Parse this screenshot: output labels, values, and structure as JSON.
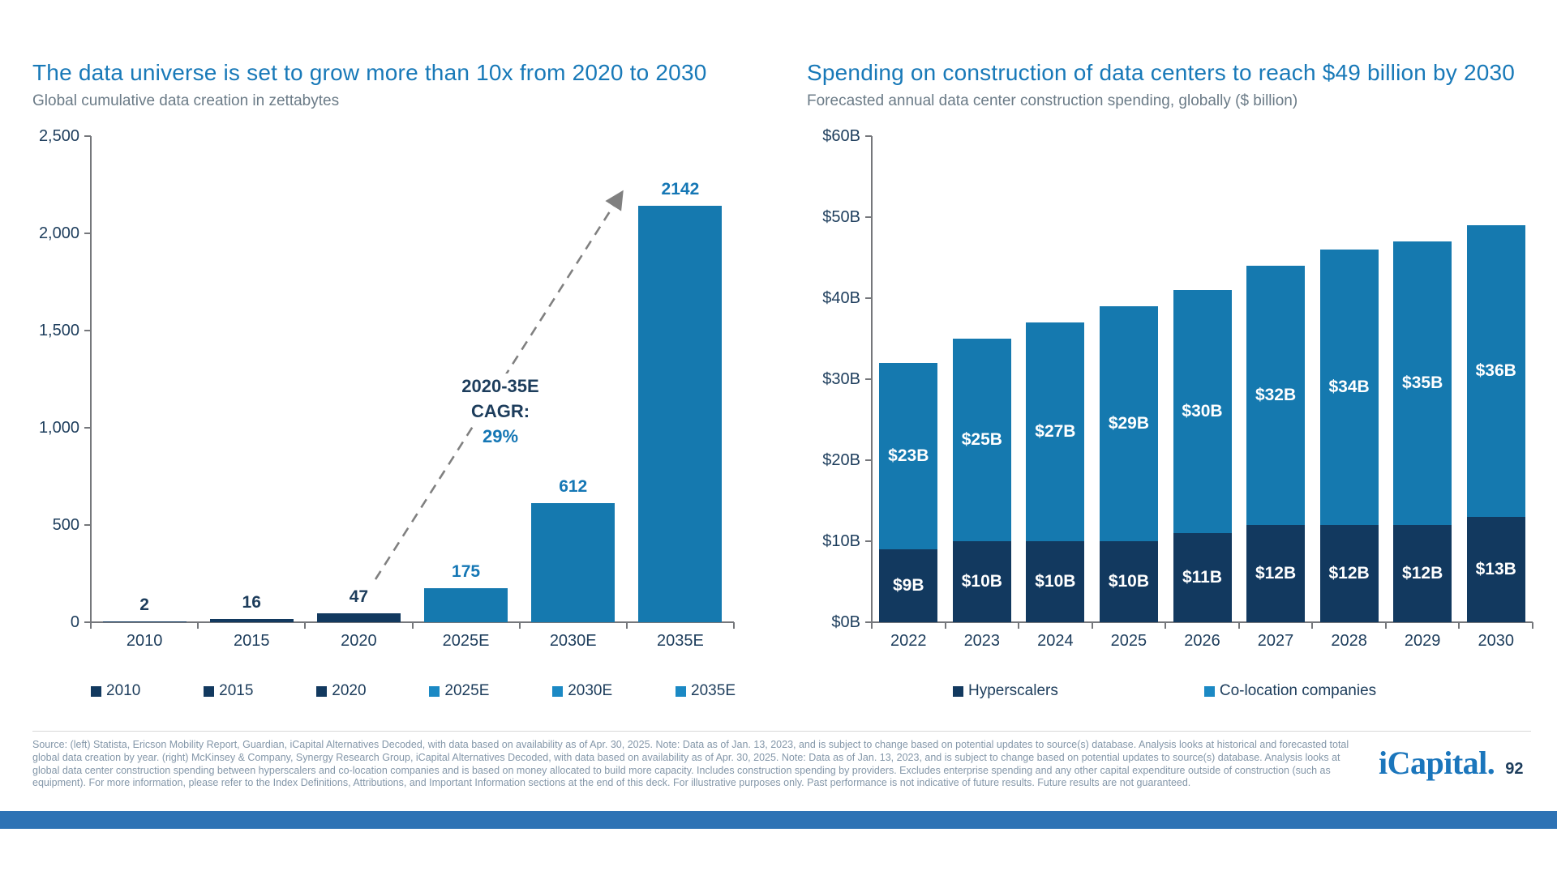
{
  "slide": {
    "logo_text": "iCapital.",
    "page_number": "92",
    "footer_text": "Source: (left) Statista, Ericson Mobility Report, Guardian, iCapital Alternatives Decoded, with data based on availability as of Apr. 30, 2025. Note: Data as of Jan. 13, 2023, and is subject to change based on potential updates to source(s) database. Analysis looks at historical and forecasted total global data creation by year. (right) McKinsey & Company, Synergy Research Group, iCapital Alternatives Decoded, with data based on availability as of Apr. 30, 2025. Note: Data as of Jan. 13, 2023, and is subject to change based on potential updates to source(s) database. Analysis looks at global data center construction spending between hyperscalers and co-location companies and is based on money allocated to build more capacity. Includes construction spending by providers. Excludes enterprise spending and any other capital expenditure outside of construction (such as equipment). For more information, please refer to the Index Definitions, Attributions, and Important Information sections at the end of this deck. For illustrative purposes only. Past performance is not indicative of future results. Future results are not guaranteed.",
    "colors": {
      "title_blue": "#1879B8",
      "text_navy": "#1D3D5C",
      "bar_navy": "#12395F",
      "bar_blue": "#1579AF",
      "legend_blue": "#1B89C4",
      "value_blue": "#1577B5",
      "subtitle_gray": "#6B7B87",
      "footer_gray": "#8497A9",
      "axis_gray": "#75777B",
      "arrow_gray": "#808080",
      "bottom_bar_blue": "#2E73B5",
      "logo_blue": "#1B76BC"
    }
  },
  "chart_data": [
    {
      "type": "bar",
      "title": "The data universe is set to grow more than 10x from 2020 to 2030",
      "subtitle": "Global cumulative data creation in zettabytes",
      "categories": [
        "2010",
        "2015",
        "2020",
        "2025E",
        "2030E",
        "2035E"
      ],
      "values": [
        2,
        16,
        47,
        175,
        612,
        2142
      ],
      "value_labels": [
        "2",
        "16",
        "47",
        "175",
        "612",
        "2142"
      ],
      "bar_colors": [
        "navy",
        "navy",
        "navy",
        "blue",
        "blue",
        "blue"
      ],
      "ylim": [
        0,
        2500
      ],
      "yticks": [
        0,
        500,
        1000,
        1500,
        2000,
        2500
      ],
      "ytick_labels": [
        "0",
        "500",
        "1,000",
        "1,500",
        "2,000",
        "2,500"
      ],
      "grid": false,
      "legend_position": "bottom",
      "legend": [
        {
          "label": "2010",
          "color": "navy"
        },
        {
          "label": "2015",
          "color": "navy"
        },
        {
          "label": "2020",
          "color": "navy"
        },
        {
          "label": "2025E",
          "color": "legend_blue"
        },
        {
          "label": "2030E",
          "color": "legend_blue"
        },
        {
          "label": "2035E",
          "color": "legend_blue"
        }
      ],
      "annotation": {
        "line1": "2020-35E",
        "line2": "CAGR:",
        "line3": "29%"
      }
    },
    {
      "type": "stacked-bar",
      "title": "Spending on construction of data centers to reach $49 billion by 2030",
      "subtitle": "Forecasted annual data center construction spending, globally ($ billion)",
      "categories": [
        "2022",
        "2023",
        "2024",
        "2025",
        "2026",
        "2027",
        "2028",
        "2029",
        "2030"
      ],
      "series": [
        {
          "name": "Hyperscalers",
          "color": "navy",
          "values": [
            9,
            10,
            10,
            10,
            11,
            12,
            12,
            12,
            13
          ],
          "labels": [
            "$9B",
            "$10B",
            "$10B",
            "$10B",
            "$11B",
            "$12B",
            "$12B",
            "$12B",
            "$13B"
          ]
        },
        {
          "name": "Co-location companies",
          "color": "blue",
          "values": [
            23,
            25,
            27,
            29,
            30,
            32,
            34,
            35,
            36
          ],
          "labels": [
            "$23B",
            "$25B",
            "$27B",
            "$29B",
            "$30B",
            "$32B",
            "$34B",
            "$35B",
            "$36B"
          ]
        }
      ],
      "ylim": [
        0,
        60
      ],
      "yticks": [
        0,
        10,
        20,
        30,
        40,
        50,
        60
      ],
      "ytick_labels": [
        "$0B",
        "$10B",
        "$20B",
        "$30B",
        "$40B",
        "$50B",
        "$60B"
      ],
      "grid": false,
      "legend_position": "bottom",
      "legend": [
        {
          "label": "Hyperscalers",
          "color": "navy"
        },
        {
          "label": "Co-location companies",
          "color": "legend_blue"
        }
      ]
    }
  ]
}
